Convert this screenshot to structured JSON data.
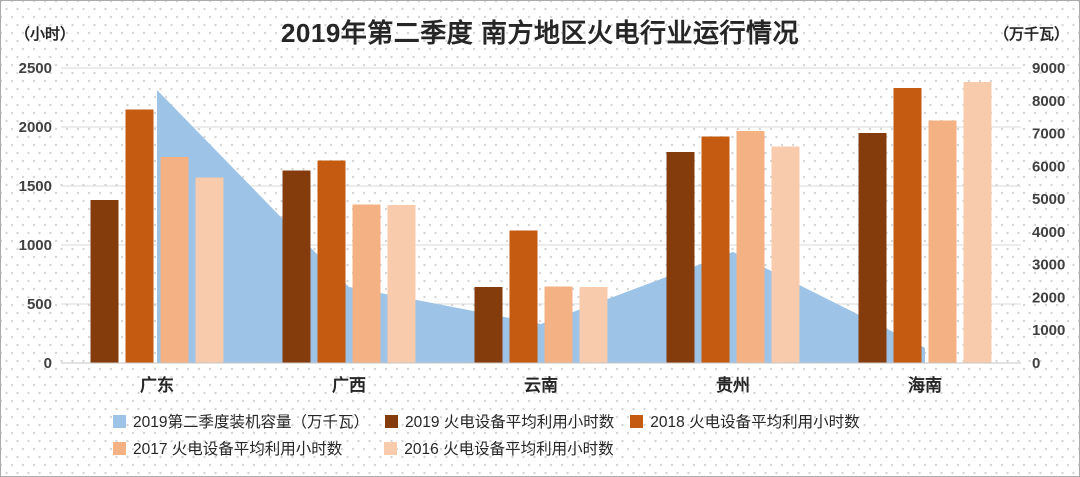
{
  "title": "2019年第二季度  南方地区火电行业运行情况",
  "left_axis": {
    "unit": "（小时）",
    "min": 0,
    "max": 2500,
    "step": 500,
    "ticks": [
      "0",
      "500",
      "1000",
      "1500",
      "2000",
      "2500"
    ]
  },
  "right_axis": {
    "unit": "（万千瓦）",
    "min": 0,
    "max": 9000,
    "step": 1000,
    "ticks": [
      "0",
      "1000",
      "2000",
      "3000",
      "4000",
      "5000",
      "6000",
      "7000",
      "8000",
      "9000"
    ]
  },
  "chart_data": {
    "type": "combo-area-bar",
    "title": "2019年第二季度  南方地区火电行业运行情况",
    "categories": [
      "广东",
      "广西",
      "云南",
      "贵州",
      "海南"
    ],
    "grid": true,
    "legend_position": "bottom",
    "area_series": {
      "name": "2019第二季度装机容量（万千瓦）",
      "axis": "right",
      "unit": "万千瓦",
      "color": "#9DC3E6",
      "values": [
        8330,
        2320,
        1190,
        3390,
        460
      ]
    },
    "bar_series": [
      {
        "name": "2019  火电设备平均利用小时数",
        "axis": "left",
        "unit": "小时",
        "color": "#843C0C",
        "values": [
          1380,
          1630,
          645,
          1790,
          1950
        ]
      },
      {
        "name": "2018  火电设备平均利用小时数",
        "axis": "left",
        "unit": "小时",
        "color": "#C55A11",
        "values": [
          2150,
          1715,
          1125,
          1920,
          2330
        ]
      },
      {
        "name": "2017  火电设备平均利用小时数",
        "axis": "left",
        "unit": "小时",
        "color": "#F4B183",
        "values": [
          1745,
          1345,
          650,
          1965,
          2055
        ]
      },
      {
        "name": "2016  火电设备平均利用小时数",
        "axis": "left",
        "unit": "小时",
        "color": "#F8CBAD",
        "values": [
          1570,
          1340,
          645,
          1835,
          2380
        ]
      }
    ]
  },
  "colors": {
    "grid_line": "#D9D9D9",
    "axis_line": "#C6C6C6",
    "tick_text": "#404040",
    "title_text": "#262626",
    "background_dot": "#D4D4D4",
    "border": "#ABABAB"
  }
}
